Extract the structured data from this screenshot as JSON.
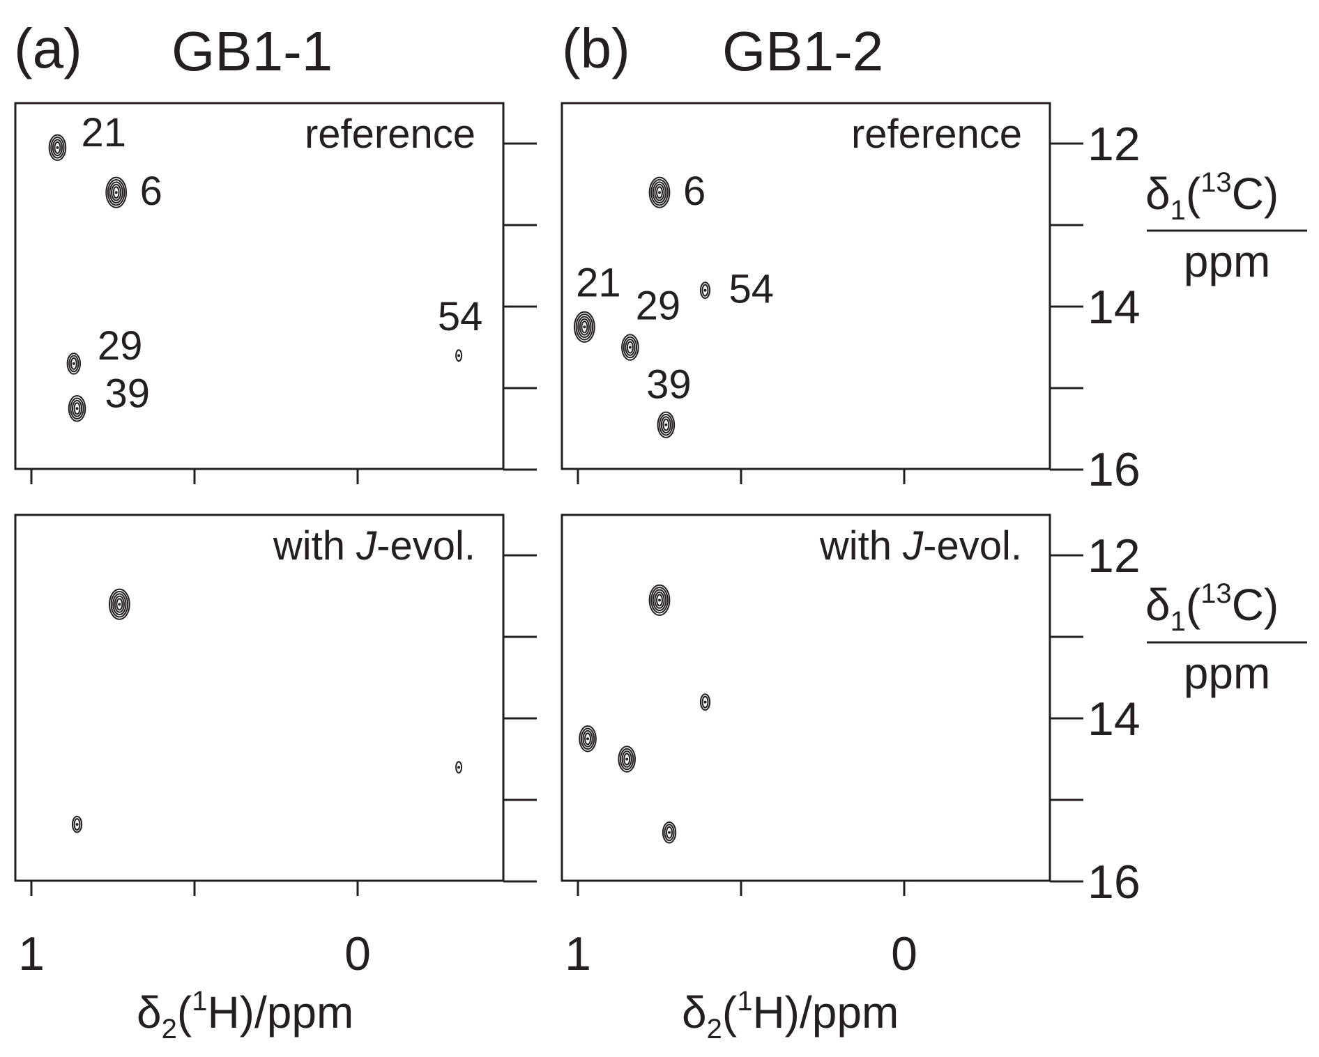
{
  "figure": {
    "panel_a": {
      "letter": "(a)",
      "title": "GB1-1"
    },
    "panel_b": {
      "letter": "(b)",
      "title": "GB1-2"
    },
    "row_labels": {
      "top": "reference",
      "bottom_prefix": "with ",
      "bottom_italic": "J",
      "bottom_suffix": "-evol."
    },
    "xaxis": {
      "delta": "δ",
      "sub": "2",
      "open": "(",
      "sup": "1",
      "nucleus": "H)/ppm",
      "ticklabels": [
        "1",
        "0"
      ]
    },
    "yaxis": {
      "delta": "δ",
      "sub": "1",
      "open": "(",
      "sup": "13",
      "nucleus": "C)",
      "unit": "ppm",
      "ticklabels": [
        "12",
        "14",
        "16"
      ]
    }
  },
  "chart_data": [
    {
      "type": "scatter",
      "subtype": "2D NMR contour spectrum",
      "panel": "a-top",
      "title": "GB1-1",
      "annotation": "reference",
      "xlim": [
        1.05,
        -0.45
      ],
      "ylim": [
        11.5,
        16
      ],
      "xticks": [
        1,
        0.5,
        0,
        -0.5
      ],
      "yticks": [
        12,
        13,
        14,
        15,
        16
      ],
      "peaks": [
        {
          "label": "21",
          "x": 0.92,
          "y": 12.05,
          "intensity": 4
        },
        {
          "label": "6",
          "x": 0.74,
          "y": 12.6,
          "intensity": 5
        },
        {
          "label": "29",
          "x": 0.87,
          "y": 14.7,
          "intensity": 3
        },
        {
          "label": "39",
          "x": 0.86,
          "y": 15.25,
          "intensity": 4
        },
        {
          "label": "54",
          "x": -0.31,
          "y": 14.6,
          "intensity": 1
        }
      ]
    },
    {
      "type": "scatter",
      "subtype": "2D NMR contour spectrum",
      "panel": "a-bottom",
      "title": "GB1-1",
      "annotation": "with J-evol.",
      "xlim": [
        1.05,
        -0.45
      ],
      "ylim": [
        11.5,
        16
      ],
      "xticks": [
        1,
        0.5,
        0,
        -0.5
      ],
      "yticks": [
        12,
        13,
        14,
        15,
        16
      ],
      "peaks": [
        {
          "label": "",
          "x": 0.73,
          "y": 12.6,
          "intensity": 5
        },
        {
          "label": "",
          "x": 0.86,
          "y": 15.3,
          "intensity": 2
        },
        {
          "label": "",
          "x": -0.31,
          "y": 14.6,
          "intensity": 1
        }
      ]
    },
    {
      "type": "scatter",
      "subtype": "2D NMR contour spectrum",
      "panel": "b-top",
      "title": "GB1-2",
      "annotation": "reference",
      "xlim": [
        1.05,
        -0.45
      ],
      "ylim": [
        11.5,
        16
      ],
      "xticks": [
        1,
        0.5,
        0
      ],
      "yticks": [
        12,
        13,
        14,
        15,
        16
      ],
      "peaks": [
        {
          "label": "6",
          "x": 0.75,
          "y": 12.6,
          "intensity": 5
        },
        {
          "label": "21",
          "x": 0.98,
          "y": 14.25,
          "intensity": 5
        },
        {
          "label": "29",
          "x": 0.84,
          "y": 14.5,
          "intensity": 4
        },
        {
          "label": "39",
          "x": 0.73,
          "y": 15.45,
          "intensity": 4
        },
        {
          "label": "54",
          "x": 0.61,
          "y": 13.8,
          "intensity": 2
        }
      ]
    },
    {
      "type": "scatter",
      "subtype": "2D NMR contour spectrum",
      "panel": "b-bottom",
      "title": "GB1-2",
      "annotation": "with J-evol.",
      "xlim": [
        1.05,
        -0.45
      ],
      "ylim": [
        11.5,
        16
      ],
      "xticks": [
        1,
        0.5,
        0
      ],
      "yticks": [
        12,
        13,
        14,
        15,
        16
      ],
      "peaks": [
        {
          "label": "",
          "x": 0.75,
          "y": 12.55,
          "intensity": 5
        },
        {
          "label": "",
          "x": 0.61,
          "y": 13.8,
          "intensity": 2
        },
        {
          "label": "",
          "x": 0.97,
          "y": 14.25,
          "intensity": 4
        },
        {
          "label": "",
          "x": 0.85,
          "y": 14.5,
          "intensity": 4
        },
        {
          "label": "",
          "x": 0.72,
          "y": 15.4,
          "intensity": 3
        }
      ]
    }
  ]
}
